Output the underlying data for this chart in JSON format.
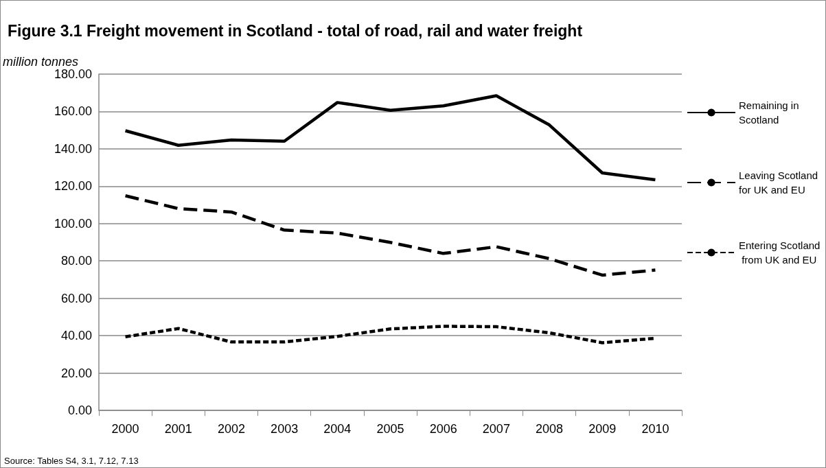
{
  "chart_data": {
    "type": "line",
    "title": "Figure 3.1 Freight movement in Scotland - total of road, rail and water freight",
    "ylabel": "million tonnes",
    "categories": [
      "2000",
      "2001",
      "2002",
      "2003",
      "2004",
      "2005",
      "2006",
      "2007",
      "2008",
      "2009",
      "2010"
    ],
    "series": [
      {
        "name": "Remaining in Scotland",
        "color": "#000000",
        "line_style": "solid",
        "values": [
          149.7,
          141.9,
          144.7,
          144.1,
          164.8,
          160.6,
          163.0,
          168.4,
          152.8,
          127.1,
          123.4
        ]
      },
      {
        "name": "Leaving Scotland for UK and EU",
        "color": "#000000",
        "line_style": "dashed",
        "values": [
          114.9,
          108.0,
          106.2,
          96.5,
          94.9,
          89.9,
          84.0,
          87.6,
          81.2,
          72.4,
          75.1
        ]
      },
      {
        "name": "Entering Scotland from UK and EU",
        "color": "#000000",
        "line_style": "dotted",
        "values": [
          39.4,
          43.8,
          36.6,
          36.6,
          39.6,
          43.6,
          45.0,
          44.8,
          41.5,
          36.2,
          38.6
        ]
      }
    ],
    "ylim": [
      0,
      180
    ],
    "yticks": [
      {
        "value": 0,
        "label": "0.00"
      },
      {
        "value": 20,
        "label": "20.00"
      },
      {
        "value": 40,
        "label": "40.00"
      },
      {
        "value": 60,
        "label": "60.00"
      },
      {
        "value": 80,
        "label": "80.00"
      },
      {
        "value": 100,
        "label": "100.00"
      },
      {
        "value": 120,
        "label": "120.00"
      },
      {
        "value": 140,
        "label": "140.00"
      },
      {
        "value": 160,
        "label": "160.00"
      },
      {
        "value": 180,
        "label": "180.00"
      }
    ],
    "grid": "y",
    "legend": "right",
    "marker": "none",
    "annotations": [
      "Source: Tables S4, 3.1, 7.12, 7.13"
    ]
  }
}
